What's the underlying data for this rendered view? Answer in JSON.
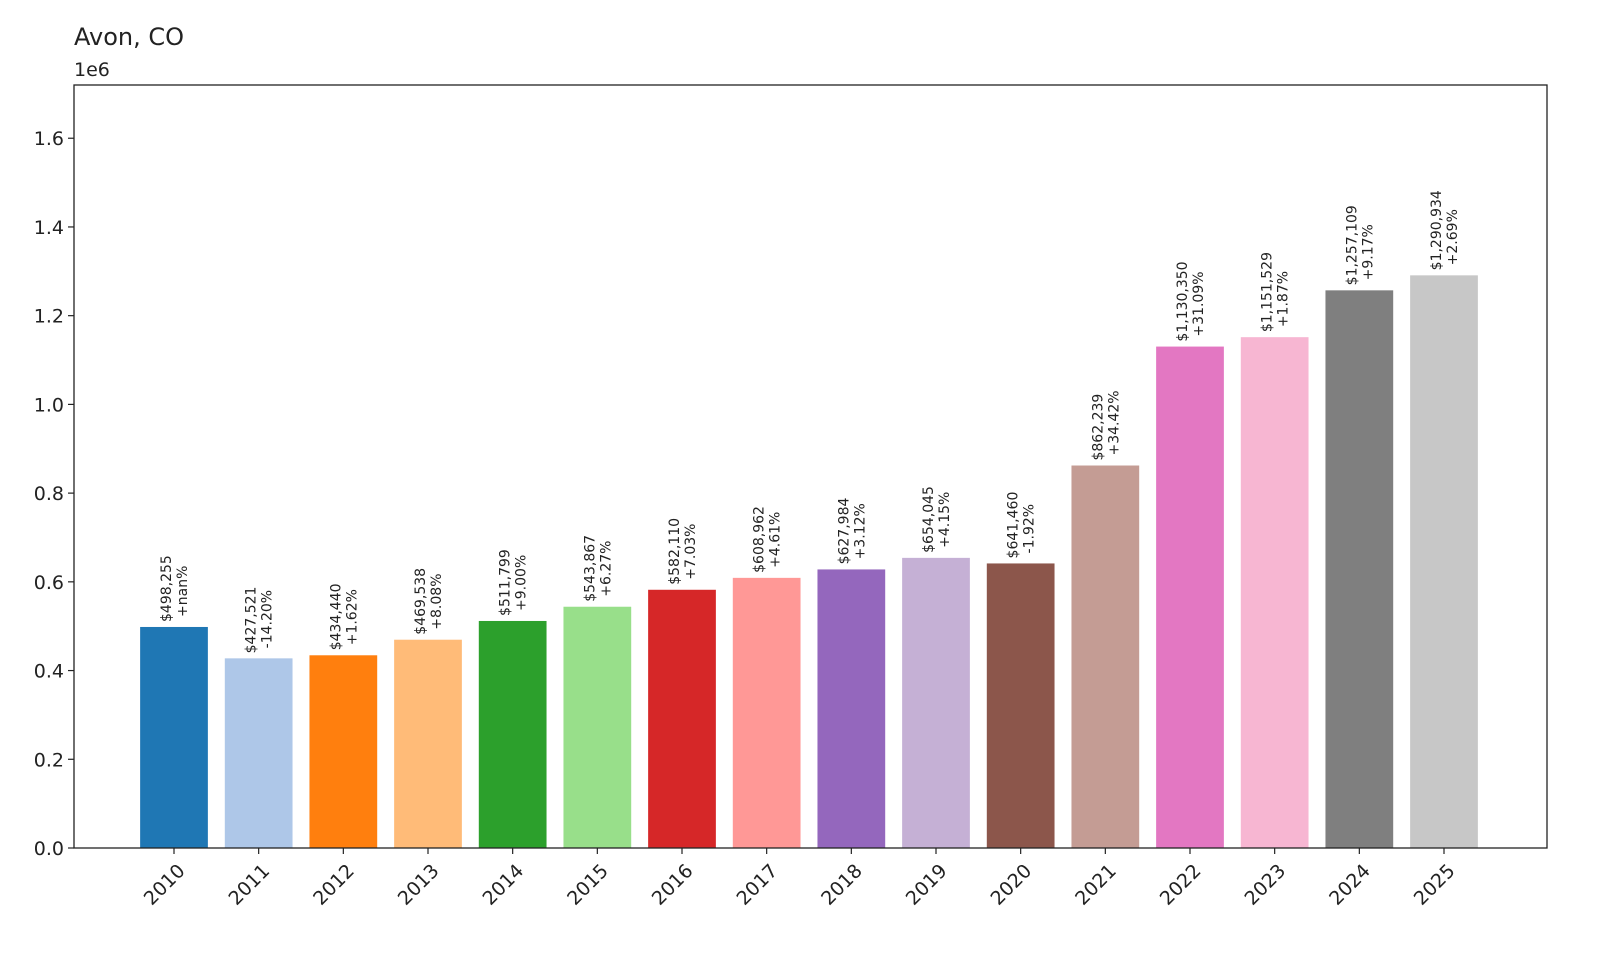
{
  "chart_data": {
    "type": "bar",
    "title": "Avon, CO",
    "y_offset_label": "1e6",
    "xlabel": "",
    "ylabel": "",
    "ylim": [
      0,
      1.72
    ],
    "yticks": [
      0.0,
      0.2,
      0.4,
      0.6,
      0.8,
      1.0,
      1.2,
      1.4,
      1.6
    ],
    "ytick_labels": [
      "0.0",
      "0.2",
      "0.4",
      "0.6",
      "0.8",
      "1.0",
      "1.2",
      "1.4",
      "1.6"
    ],
    "grid": false,
    "categories": [
      "2010",
      "2011",
      "2012",
      "2013",
      "2014",
      "2015",
      "2016",
      "2017",
      "2018",
      "2019",
      "2020",
      "2021",
      "2022",
      "2023",
      "2024",
      "2025"
    ],
    "values": [
      498255,
      427521,
      434440,
      469538,
      511799,
      543867,
      582110,
      608962,
      627984,
      654045,
      641460,
      862239,
      1130350,
      1151529,
      1257109,
      1290934
    ],
    "value_labels": [
      "$498,255",
      "$427,521",
      "$434,440",
      "$469,538",
      "$511,799",
      "$543,867",
      "$582,110",
      "$608,962",
      "$627,984",
      "$654,045",
      "$641,460",
      "$862,239",
      "$1,130,350",
      "$1,151,529",
      "$1,257,109",
      "$1,290,934"
    ],
    "change_labels": [
      "+nan%",
      "-14.20%",
      "+1.62%",
      "+8.08%",
      "+9.00%",
      "+6.27%",
      "+7.03%",
      "+4.61%",
      "+3.12%",
      "+4.15%",
      "-1.92%",
      "+34.42%",
      "+31.09%",
      "+1.87%",
      "+9.17%",
      "+2.69%"
    ],
    "colors": [
      "#1f77b4",
      "#aec7e8",
      "#ff7f0e",
      "#ffbb78",
      "#2ca02c",
      "#98df8a",
      "#d62728",
      "#ff9896",
      "#9467bd",
      "#c5b0d5",
      "#8c564b",
      "#c49c94",
      "#e377c2",
      "#f7b6d2",
      "#7f7f7f",
      "#c7c7c7"
    ]
  }
}
